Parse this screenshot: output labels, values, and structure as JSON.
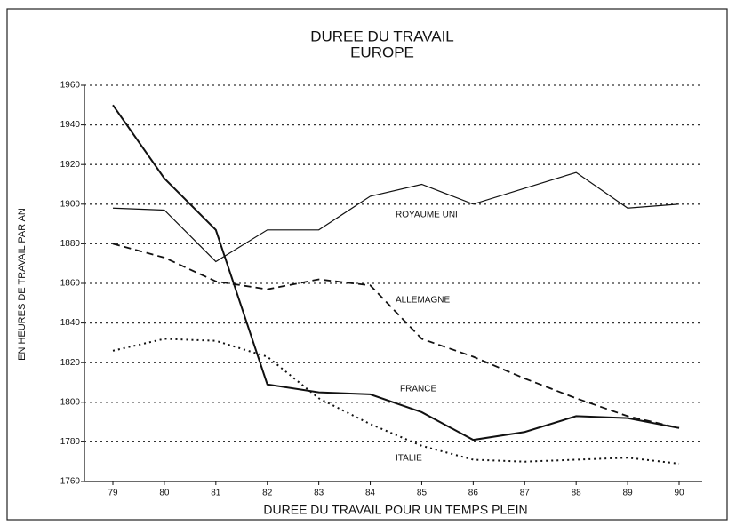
{
  "chart_data": {
    "type": "line",
    "title": "DUREE DU TRAVAIL",
    "subtitle": "EUROPE",
    "y_label": "EN HEURES DE TRAVAIL PAR AN",
    "x_label": "DUREE DU TRAVAIL POUR UN TEMPS PLEIN",
    "categories": [
      "79",
      "80",
      "81",
      "82",
      "83",
      "84",
      "85",
      "86",
      "87",
      "88",
      "89",
      "90"
    ],
    "series": [
      {
        "name": "ROYAUME UNI",
        "color": "#111111",
        "line_style": "solid",
        "line_width": 1.2,
        "values": [
          1898,
          1897,
          1871,
          1887,
          1887,
          1904,
          1910,
          1900,
          1908,
          1916,
          1898,
          1900
        ]
      },
      {
        "name": "ALLEMAGNE",
        "color": "#111111",
        "line_style": "dashed",
        "line_width": 1.8,
        "values": [
          1880,
          1873,
          1861,
          1857,
          1862,
          1859,
          1832,
          1823,
          1812,
          1802,
          1793,
          1787
        ]
      },
      {
        "name": "FRANCE",
        "color": "#111111",
        "line_style": "solid",
        "line_width": 2,
        "values": [
          1950,
          1913,
          1887,
          1809,
          1805,
          1804,
          1795,
          1781,
          1785,
          1793,
          1792,
          1787
        ]
      },
      {
        "name": "ITALIE",
        "color": "#111111",
        "line_style": "dotted",
        "line_width": 2,
        "values": [
          1826,
          1832,
          1831,
          1823,
          1802,
          1789,
          1778,
          1771,
          1770,
          1771,
          1772,
          1769
        ]
      }
    ],
    "ylim": [
      1760,
      1960
    ],
    "yticks": [
      1760,
      1780,
      1800,
      1820,
      1840,
      1860,
      1880,
      1900,
      1920,
      1940,
      1960
    ],
    "grid": true,
    "grid_style": "dotted"
  }
}
